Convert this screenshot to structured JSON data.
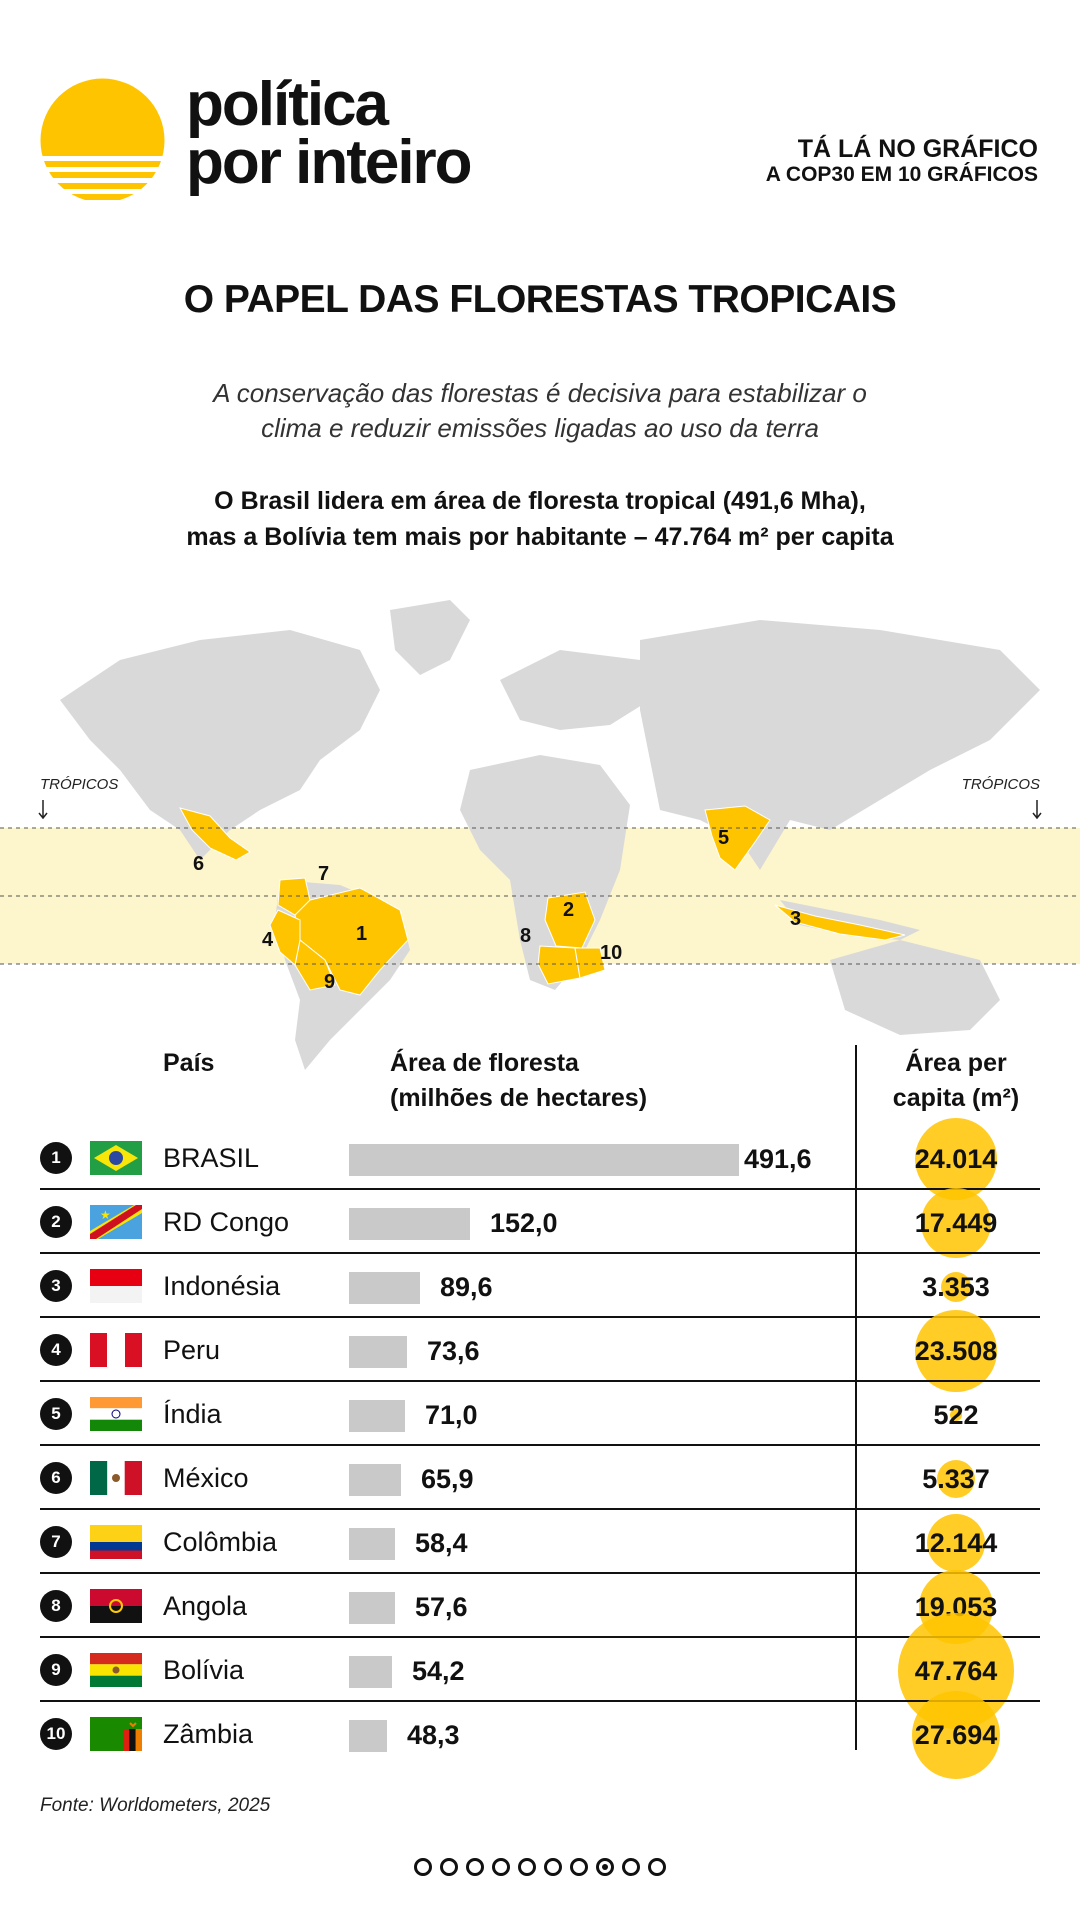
{
  "header": {
    "brand_line1": "política",
    "brand_line2": "por inteiro",
    "kicker_line1": "TÁ LÁ NO GRÁFICO",
    "kicker_line2": "A COP30 EM 10 GRÁFICOS",
    "logo_icon": "sun-stripes-logo-icon",
    "accent_color": "#FFC400"
  },
  "title": "O PAPEL DAS FLORESTAS TROPICAIS",
  "subtitle_line1": "A conservação das florestas é decisiva para estabilizar o",
  "subtitle_line2": "clima e reduzir emissões ligadas ao uso da terra",
  "highlight_line1": "O Brasil lidera em área de floresta tropical (491,6 Mha),",
  "highlight_line2": "mas a Bolívia tem mais por habitante – 47.764 m² per capita",
  "map": {
    "tropics_label_left": "TRÓPICOS",
    "tropics_label_right": "TRÓPICOS",
    "land_color": "#d9d9d9",
    "tropics_band_color": "#fdf6cc",
    "highlight_color": "#FFC400",
    "markers": [
      "1",
      "2",
      "3",
      "4",
      "5",
      "6",
      "7",
      "8",
      "9",
      "10"
    ]
  },
  "table": {
    "col_country": "País",
    "col_area_line1": "Área de floresta",
    "col_area_line2": "(milhões de hectares)",
    "col_percap_line1": "Área per",
    "col_percap_line2": "capita (m²)"
  },
  "chart_data": {
    "type": "bar",
    "title": "O PAPEL DAS FLORESTAS TROPICAIS",
    "xlabel": "Área de floresta (milhões de hectares)",
    "categories": [
      "BRASIL",
      "RD Congo",
      "Indonésia",
      "Peru",
      "Índia",
      "México",
      "Colômbia",
      "Angola",
      "Bolívia",
      "Zâmbia"
    ],
    "ranks": [
      "1",
      "2",
      "3",
      "4",
      "5",
      "6",
      "7",
      "8",
      "9",
      "10"
    ],
    "flags": [
      "brazil-flag-icon",
      "dr-congo-flag-icon",
      "indonesia-flag-icon",
      "peru-flag-icon",
      "india-flag-icon",
      "mexico-flag-icon",
      "colombia-flag-icon",
      "angola-flag-icon",
      "bolivia-flag-icon",
      "zambia-flag-icon"
    ],
    "forest_area_mha": [
      491.6,
      152.0,
      89.6,
      73.6,
      71.0,
      65.9,
      58.4,
      57.6,
      54.2,
      48.3
    ],
    "forest_area_labels": [
      "491,6",
      "152,0",
      "89,6",
      "73,6",
      "71,0",
      "65,9",
      "58,4",
      "57,6",
      "54,2",
      "48,3"
    ],
    "per_capita_m2": [
      24014,
      17449,
      3353,
      23508,
      522,
      5337,
      12144,
      19053,
      47764,
      27694
    ],
    "per_capita_labels": [
      "24.014",
      "17.449",
      "3.353",
      "23.508",
      "522",
      "5.337",
      "12.144",
      "19.053",
      "47.764",
      "27.694"
    ],
    "bar_color": "#c9c9c9",
    "bubble_color": "#FFC400"
  },
  "source": "Fonte: Worldometers, 2025",
  "pagination": {
    "count": 10,
    "active_index": 7
  }
}
